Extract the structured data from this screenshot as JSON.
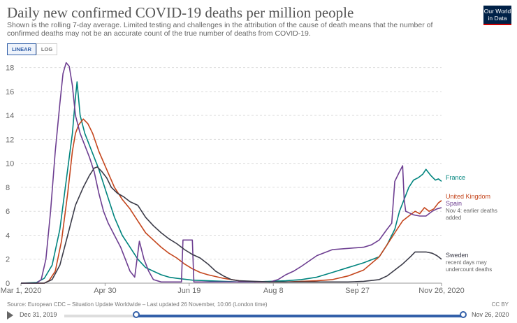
{
  "header": {
    "title": "Daily new confirmed COVID-19 deaths per million people",
    "subtitle": "Shown is the rolling 7-day average. Limited testing and challenges in the attribution of the cause of death means that the number of confirmed deaths may not be an accurate count of the true number of deaths from COVID-19.",
    "logo_line1": "Our World",
    "logo_line2": "in Data"
  },
  "scale_toggle": {
    "linear_label": "LINEAR",
    "log_label": "LOG",
    "active": "LINEAR"
  },
  "footer": {
    "source": "Source: European CDC – Situation Update Worldwide – Last updated 26 November, 10:06 (London time)",
    "license": "CC BY"
  },
  "timeline": {
    "start_label": "Dec 31, 2019",
    "end_label": "Nov 26, 2020",
    "range_start_fraction": 0.18,
    "range_end_fraction": 1.0
  },
  "chart_data": {
    "type": "line",
    "x_ticks": [
      "Mar 1, 2020",
      "Apr 30",
      "Jun 19",
      "Aug 8",
      "Sep 27",
      "Nov 26, 2020"
    ],
    "xlim": [
      0,
      270
    ],
    "ylim": [
      0,
      18.5
    ],
    "y_ticks": [
      0,
      2,
      4,
      6,
      8,
      10,
      12,
      14,
      16,
      18
    ],
    "grid": true,
    "series": [
      {
        "name": "France",
        "color": "#00847e",
        "points": [
          [
            0,
            0
          ],
          [
            10,
            0.05
          ],
          [
            15,
            0.4
          ],
          [
            20,
            1.5
          ],
          [
            25,
            4.5
          ],
          [
            28,
            7.5
          ],
          [
            31,
            10.5
          ],
          [
            33,
            12.5
          ],
          [
            35,
            15.5
          ],
          [
            36,
            16.8
          ],
          [
            38,
            14
          ],
          [
            41,
            12.5
          ],
          [
            44,
            11.5
          ],
          [
            47,
            10.5
          ],
          [
            50,
            9.5
          ],
          [
            55,
            7.5
          ],
          [
            60,
            5.5
          ],
          [
            65,
            4
          ],
          [
            70,
            3
          ],
          [
            75,
            2
          ],
          [
            80,
            1.3
          ],
          [
            85,
            1
          ],
          [
            90,
            0.7
          ],
          [
            95,
            0.5
          ],
          [
            100,
            0.4
          ],
          [
            110,
            0.25
          ],
          [
            120,
            0.2
          ],
          [
            130,
            0.15
          ],
          [
            140,
            0.1
          ],
          [
            150,
            0.1
          ],
          [
            160,
            0.15
          ],
          [
            170,
            0.2
          ],
          [
            180,
            0.3
          ],
          [
            190,
            0.5
          ],
          [
            200,
            0.9
          ],
          [
            210,
            1.3
          ],
          [
            220,
            1.7
          ],
          [
            230,
            2.2
          ],
          [
            235,
            3.2
          ],
          [
            240,
            4.5
          ],
          [
            243,
            6
          ],
          [
            246,
            7
          ],
          [
            249,
            8
          ],
          [
            252,
            8.6
          ],
          [
            255,
            8.8
          ],
          [
            258,
            9.1
          ],
          [
            260,
            9.5
          ],
          [
            263,
            9
          ],
          [
            266,
            8.6
          ],
          [
            268,
            8.7
          ],
          [
            270,
            8.5
          ]
        ]
      },
      {
        "name": "United Kingdom",
        "color": "#c4451c",
        "points": [
          [
            0,
            0
          ],
          [
            15,
            0
          ],
          [
            18,
            0.2
          ],
          [
            22,
            1
          ],
          [
            26,
            3.5
          ],
          [
            30,
            7.5
          ],
          [
            33,
            11
          ],
          [
            35,
            12.5
          ],
          [
            37,
            13.2
          ],
          [
            40,
            13.7
          ],
          [
            43,
            13.3
          ],
          [
            46,
            12.5
          ],
          [
            50,
            11
          ],
          [
            55,
            9.5
          ],
          [
            60,
            8
          ],
          [
            65,
            7
          ],
          [
            70,
            6.2
          ],
          [
            75,
            5.2
          ],
          [
            80,
            4.2
          ],
          [
            85,
            3.6
          ],
          [
            90,
            3
          ],
          [
            95,
            2.5
          ],
          [
            100,
            2.1
          ],
          [
            105,
            1.6
          ],
          [
            110,
            1.2
          ],
          [
            115,
            0.9
          ],
          [
            120,
            0.7
          ],
          [
            130,
            0.4
          ],
          [
            140,
            0.2
          ],
          [
            150,
            0.1
          ],
          [
            160,
            0.1
          ],
          [
            170,
            0.1
          ],
          [
            180,
            0.15
          ],
          [
            190,
            0.2
          ],
          [
            200,
            0.3
          ],
          [
            210,
            0.6
          ],
          [
            220,
            1.1
          ],
          [
            230,
            2.2
          ],
          [
            235,
            3.2
          ],
          [
            240,
            4.2
          ],
          [
            245,
            5.2
          ],
          [
            250,
            5.7
          ],
          [
            253,
            6
          ],
          [
            256,
            5.8
          ],
          [
            259,
            6.3
          ],
          [
            262,
            6.0
          ],
          [
            265,
            6.2
          ],
          [
            268,
            6.7
          ],
          [
            270,
            6.9
          ]
        ]
      },
      {
        "name": "Spain",
        "color": "#6d3e91",
        "points": [
          [
            0,
            0
          ],
          [
            10,
            0
          ],
          [
            13,
            0.3
          ],
          [
            16,
            2
          ],
          [
            19,
            6
          ],
          [
            22,
            11
          ],
          [
            25,
            15
          ],
          [
            27,
            17.5
          ],
          [
            29,
            18.4
          ],
          [
            31,
            18.1
          ],
          [
            33,
            16.5
          ],
          [
            35,
            14
          ],
          [
            38,
            12.5
          ],
          [
            41,
            11.5
          ],
          [
            44,
            10.5
          ],
          [
            47,
            9.3
          ],
          [
            50,
            7.5
          ],
          [
            53,
            6
          ],
          [
            56,
            5
          ],
          [
            60,
            4
          ],
          [
            64,
            3
          ],
          [
            67,
            2
          ],
          [
            70,
            1
          ],
          [
            73,
            0.5
          ],
          [
            76,
            3.5
          ],
          [
            79,
            2
          ],
          [
            82,
            1
          ],
          [
            85,
            0.3
          ],
          [
            90,
            0.1
          ],
          [
            100,
            0.1
          ],
          [
            103,
            0.1
          ],
          [
            104,
            3.6
          ],
          [
            108,
            3.6
          ],
          [
            110,
            3.6
          ],
          [
            111,
            0.1
          ],
          [
            120,
            0.1
          ],
          [
            130,
            0.1
          ],
          [
            140,
            0.1
          ],
          [
            150,
            0.1
          ],
          [
            160,
            0.1
          ],
          [
            165,
            0.3
          ],
          [
            170,
            0.7
          ],
          [
            175,
            1
          ],
          [
            180,
            1.4
          ],
          [
            190,
            2.3
          ],
          [
            200,
            2.8
          ],
          [
            210,
            2.9
          ],
          [
            220,
            3.0
          ],
          [
            225,
            3.2
          ],
          [
            230,
            3.6
          ],
          [
            235,
            4.5
          ],
          [
            238,
            5
          ],
          [
            240,
            8.5
          ],
          [
            243,
            9.3
          ],
          [
            245,
            9.8
          ],
          [
            246,
            7
          ],
          [
            247,
            6
          ],
          [
            252,
            5.7
          ],
          [
            256,
            5.6
          ],
          [
            260,
            5.6
          ],
          [
            264,
            6.0
          ],
          [
            267,
            6.2
          ],
          [
            270,
            6.3
          ]
        ]
      },
      {
        "name": "Sweden",
        "color": "#3b3b48",
        "points": [
          [
            0,
            0
          ],
          [
            15,
            0
          ],
          [
            20,
            0.3
          ],
          [
            25,
            1.5
          ],
          [
            30,
            4
          ],
          [
            35,
            6.5
          ],
          [
            40,
            8
          ],
          [
            44,
            9
          ],
          [
            47,
            9.6
          ],
          [
            49,
            9.7
          ],
          [
            52,
            9.3
          ],
          [
            55,
            8.8
          ],
          [
            58,
            8.0
          ],
          [
            62,
            7.5
          ],
          [
            66,
            7.2
          ],
          [
            70,
            6.8
          ],
          [
            75,
            6.5
          ],
          [
            80,
            5.5
          ],
          [
            85,
            4.8
          ],
          [
            90,
            4.2
          ],
          [
            95,
            3.7
          ],
          [
            100,
            3.3
          ],
          [
            105,
            2.8
          ],
          [
            110,
            2.4
          ],
          [
            115,
            2.1
          ],
          [
            120,
            1.6
          ],
          [
            125,
            1
          ],
          [
            130,
            0.6
          ],
          [
            135,
            0.3
          ],
          [
            140,
            0.2
          ],
          [
            150,
            0.15
          ],
          [
            160,
            0.1
          ],
          [
            170,
            0.1
          ],
          [
            180,
            0.1
          ],
          [
            190,
            0.1
          ],
          [
            200,
            0.1
          ],
          [
            210,
            0.1
          ],
          [
            220,
            0.15
          ],
          [
            230,
            0.3
          ],
          [
            235,
            0.6
          ],
          [
            240,
            1.1
          ],
          [
            245,
            1.6
          ],
          [
            250,
            2.2
          ],
          [
            253,
            2.6
          ],
          [
            256,
            2.6
          ],
          [
            260,
            2.6
          ],
          [
            264,
            2.5
          ],
          [
            267,
            2.3
          ],
          [
            270,
            2.0
          ]
        ]
      }
    ],
    "annotations": [
      {
        "series": "Spain",
        "text_lines": [
          "Nov 4: earlier deaths",
          "added"
        ]
      },
      {
        "series": "Sweden",
        "text_lines": [
          "recent days may",
          "undercount deaths"
        ]
      }
    ]
  }
}
